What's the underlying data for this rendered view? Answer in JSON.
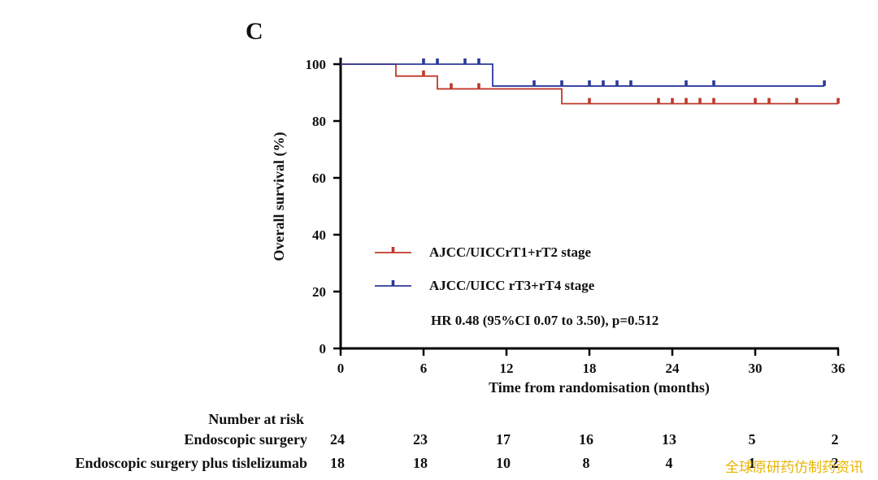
{
  "panel_label": "C",
  "chart_data": {
    "type": "line",
    "subtype": "kaplan-meier-step",
    "xlabel": "Time from randomisation (months)",
    "ylabel": "Overall survival (%)",
    "xlim": [
      0,
      36
    ],
    "ylim": [
      0,
      100
    ],
    "xticks": [
      0,
      6,
      12,
      18,
      24,
      30,
      36
    ],
    "yticks": [
      0,
      20,
      40,
      60,
      80,
      100
    ],
    "grid": false,
    "legend_position": "center",
    "series": [
      {
        "name": "AJCC/UICCrT1+rT2 stage",
        "color": "#c0392b",
        "steps": [
          [
            0,
            100
          ],
          [
            4,
            95.8
          ],
          [
            7,
            91.3
          ],
          [
            16,
            86.1
          ],
          [
            36,
            86.1
          ]
        ],
        "censored": [
          6,
          8,
          10,
          18,
          23,
          24,
          25,
          26,
          27,
          30,
          31,
          33,
          36
        ]
      },
      {
        "name": "AJCC/UICC rT3+rT4  stage",
        "color": "#2b3a9b",
        "steps": [
          [
            0,
            100
          ],
          [
            11,
            92.3
          ],
          [
            35,
            92.3
          ]
        ],
        "censored": [
          6,
          7,
          9,
          10,
          14,
          16,
          18,
          19,
          20,
          21,
          25,
          27,
          35
        ]
      }
    ],
    "annotation": "HR 0.48 (95%CI 0.07 to 3.50), p=0.512"
  },
  "risk_table": {
    "title": "Number at risk",
    "times": [
      0,
      6,
      12,
      18,
      24,
      30,
      36
    ],
    "rows": [
      {
        "label": "Endoscopic surgery",
        "values": [
          "24",
          "23",
          "17",
          "16",
          "13",
          "5",
          "2"
        ]
      },
      {
        "label": "Endoscopic surgery plus tislelizumab",
        "values": [
          "18",
          "18",
          "10",
          "8",
          "4",
          "1",
          "2"
        ]
      }
    ]
  },
  "watermark": "全球原研药仿制药资讯"
}
